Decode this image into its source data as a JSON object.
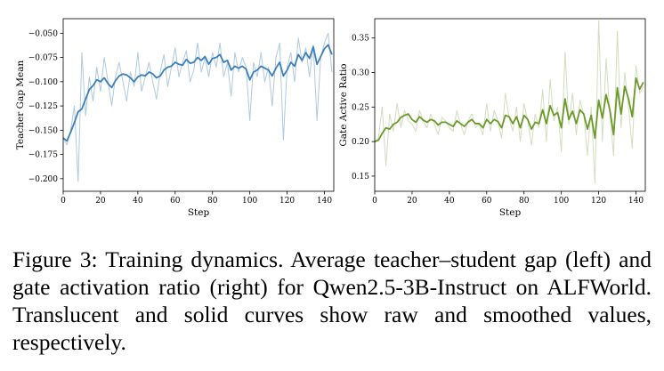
{
  "chart_data": [
    {
      "type": "line",
      "title": "",
      "xlabel": "Step",
      "ylabel": "Teacher Gap Mean",
      "xlim": [
        0,
        145
      ],
      "ylim": [
        -0.213,
        -0.035
      ],
      "xticks": [
        0,
        20,
        40,
        60,
        80,
        100,
        120,
        140
      ],
      "yticks": [
        -0.2,
        -0.175,
        -0.15,
        -0.125,
        -0.1,
        -0.075,
        -0.05
      ],
      "ytick_labels": [
        "−0.200",
        "−0.175",
        "−0.150",
        "−0.125",
        "−0.100",
        "−0.075",
        "−0.050"
      ],
      "grid": false,
      "legend": "none",
      "series": [
        {
          "style": "raw",
          "color": "#aec9e3",
          "x": [
            0,
            2,
            4,
            6,
            8,
            10,
            12,
            14,
            16,
            18,
            20,
            22,
            24,
            26,
            28,
            30,
            32,
            34,
            36,
            38,
            40,
            42,
            44,
            46,
            48,
            50,
            52,
            54,
            56,
            58,
            60,
            62,
            64,
            66,
            68,
            70,
            72,
            74,
            76,
            78,
            80,
            82,
            84,
            86,
            88,
            90,
            92,
            94,
            96,
            98,
            100,
            102,
            104,
            106,
            108,
            110,
            112,
            114,
            116,
            118,
            120,
            122,
            124,
            126,
            128,
            130,
            132,
            134,
            136,
            138,
            140,
            142,
            144
          ],
          "y": [
            -0.158,
            -0.165,
            -0.15,
            -0.125,
            -0.203,
            -0.07,
            -0.135,
            -0.095,
            -0.12,
            -0.085,
            -0.11,
            -0.075,
            -0.1,
            -0.125,
            -0.095,
            -0.08,
            -0.1,
            -0.12,
            -0.09,
            -0.105,
            -0.07,
            -0.11,
            -0.095,
            -0.08,
            -0.1,
            -0.118,
            -0.09,
            -0.072,
            -0.105,
            -0.085,
            -0.065,
            -0.095,
            -0.08,
            -0.068,
            -0.1,
            -0.088,
            -0.06,
            -0.09,
            -0.075,
            -0.095,
            -0.07,
            -0.085,
            -0.06,
            -0.095,
            -0.08,
            -0.115,
            -0.07,
            -0.09,
            -0.075,
            -0.085,
            -0.14,
            -0.08,
            -0.095,
            -0.07,
            -0.1,
            -0.085,
            -0.125,
            -0.075,
            -0.06,
            -0.16,
            -0.085,
            -0.07,
            -0.1,
            -0.055,
            -0.08,
            -0.065,
            -0.095,
            -0.062,
            -0.14,
            -0.075,
            -0.06,
            -0.05,
            -0.09
          ]
        },
        {
          "style": "smoothed",
          "color": "#3b7fbd",
          "x": [
            0,
            2,
            4,
            6,
            8,
            10,
            12,
            14,
            16,
            18,
            20,
            22,
            24,
            26,
            28,
            30,
            32,
            34,
            36,
            38,
            40,
            42,
            44,
            46,
            48,
            50,
            52,
            54,
            56,
            58,
            60,
            62,
            64,
            66,
            68,
            70,
            72,
            74,
            76,
            78,
            80,
            82,
            84,
            86,
            88,
            90,
            92,
            94,
            96,
            98,
            100,
            102,
            104,
            106,
            108,
            110,
            112,
            114,
            116,
            118,
            120,
            122,
            124,
            126,
            128,
            130,
            132,
            134,
            136,
            138,
            140,
            142,
            144
          ],
          "y": [
            -0.158,
            -0.161,
            -0.152,
            -0.142,
            -0.131,
            -0.128,
            -0.118,
            -0.108,
            -0.104,
            -0.098,
            -0.1,
            -0.096,
            -0.102,
            -0.106,
            -0.099,
            -0.094,
            -0.092,
            -0.093,
            -0.096,
            -0.1,
            -0.095,
            -0.093,
            -0.094,
            -0.09,
            -0.092,
            -0.096,
            -0.094,
            -0.088,
            -0.085,
            -0.084,
            -0.08,
            -0.082,
            -0.083,
            -0.077,
            -0.081,
            -0.08,
            -0.075,
            -0.078,
            -0.074,
            -0.082,
            -0.076,
            -0.075,
            -0.072,
            -0.08,
            -0.078,
            -0.088,
            -0.084,
            -0.086,
            -0.084,
            -0.087,
            -0.098,
            -0.09,
            -0.088,
            -0.084,
            -0.086,
            -0.088,
            -0.094,
            -0.086,
            -0.08,
            -0.094,
            -0.088,
            -0.08,
            -0.084,
            -0.072,
            -0.078,
            -0.07,
            -0.076,
            -0.064,
            -0.082,
            -0.074,
            -0.066,
            -0.062,
            -0.072
          ]
        }
      ]
    },
    {
      "type": "line",
      "title": "",
      "xlabel": "Step",
      "ylabel": "Gate Active Ratio",
      "xlim": [
        0,
        145
      ],
      "ylim": [
        0.128,
        0.378
      ],
      "xticks": [
        0,
        20,
        40,
        60,
        80,
        100,
        120,
        140
      ],
      "yticks": [
        0.15,
        0.2,
        0.25,
        0.3,
        0.35
      ],
      "ytick_labels": [
        "0.15",
        "0.20",
        "0.25",
        "0.30",
        "0.35"
      ],
      "grid": false,
      "legend": "none",
      "series": [
        {
          "style": "raw",
          "color": "#d2ddc0",
          "x": [
            0,
            2,
            4,
            6,
            8,
            10,
            12,
            14,
            16,
            18,
            20,
            22,
            24,
            26,
            28,
            30,
            32,
            34,
            36,
            38,
            40,
            42,
            44,
            46,
            48,
            50,
            52,
            54,
            56,
            58,
            60,
            62,
            64,
            66,
            68,
            70,
            72,
            74,
            76,
            78,
            80,
            82,
            84,
            86,
            88,
            90,
            92,
            94,
            96,
            98,
            100,
            102,
            104,
            106,
            108,
            110,
            112,
            114,
            116,
            118,
            120,
            122,
            124,
            126,
            128,
            130,
            132,
            134,
            136,
            138,
            140,
            142,
            144
          ],
          "y": [
            0.2,
            0.205,
            0.25,
            0.165,
            0.24,
            0.215,
            0.255,
            0.22,
            0.245,
            0.23,
            0.225,
            0.215,
            0.245,
            0.23,
            0.22,
            0.24,
            0.225,
            0.21,
            0.235,
            0.23,
            0.22,
            0.215,
            0.245,
            0.225,
            0.21,
            0.23,
            0.24,
            0.22,
            0.225,
            0.21,
            0.255,
            0.215,
            0.245,
            0.23,
            0.205,
            0.27,
            0.235,
            0.215,
            0.25,
            0.2,
            0.255,
            0.23,
            0.195,
            0.24,
            0.22,
            0.275,
            0.2,
            0.29,
            0.23,
            0.25,
            0.185,
            0.33,
            0.225,
            0.27,
            0.21,
            0.26,
            0.24,
            0.18,
            0.25,
            0.14,
            0.375,
            0.2,
            0.32,
            0.24,
            0.18,
            0.36,
            0.22,
            0.3,
            0.25,
            0.19,
            0.31,
            0.27,
            0.28
          ]
        },
        {
          "style": "smoothed",
          "color": "#6b9a2a",
          "x": [
            0,
            2,
            4,
            6,
            8,
            10,
            12,
            14,
            16,
            18,
            20,
            22,
            24,
            26,
            28,
            30,
            32,
            34,
            36,
            38,
            40,
            42,
            44,
            46,
            48,
            50,
            52,
            54,
            56,
            58,
            60,
            62,
            64,
            66,
            68,
            70,
            72,
            74,
            76,
            78,
            80,
            82,
            84,
            86,
            88,
            90,
            92,
            94,
            96,
            98,
            100,
            102,
            104,
            106,
            108,
            110,
            112,
            114,
            116,
            118,
            120,
            122,
            124,
            126,
            128,
            130,
            132,
            134,
            136,
            138,
            140,
            142,
            144
          ],
          "y": [
            0.2,
            0.202,
            0.212,
            0.22,
            0.218,
            0.225,
            0.228,
            0.235,
            0.238,
            0.24,
            0.232,
            0.228,
            0.236,
            0.231,
            0.228,
            0.232,
            0.23,
            0.224,
            0.228,
            0.228,
            0.225,
            0.222,
            0.23,
            0.226,
            0.222,
            0.228,
            0.232,
            0.226,
            0.226,
            0.22,
            0.232,
            0.226,
            0.232,
            0.229,
            0.22,
            0.238,
            0.236,
            0.226,
            0.236,
            0.22,
            0.238,
            0.232,
            0.218,
            0.228,
            0.226,
            0.246,
            0.226,
            0.252,
            0.238,
            0.242,
            0.22,
            0.262,
            0.232,
            0.244,
            0.226,
            0.246,
            0.24,
            0.218,
            0.238,
            0.205,
            0.26,
            0.234,
            0.268,
            0.246,
            0.21,
            0.278,
            0.24,
            0.28,
            0.262,
            0.236,
            0.292,
            0.276,
            0.286
          ]
        }
      ]
    }
  ],
  "caption": "Figure 3: Training dynamics. Average teacher–student gap (left) and gate activation ratio (right) for Qwen2.5-3B-Instruct on ALFWorld. Translucent and solid curves show raw and smoothed values, respectively."
}
